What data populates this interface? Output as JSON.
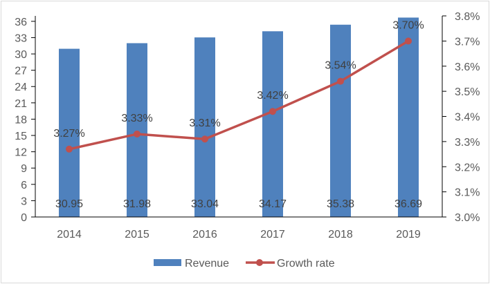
{
  "chart_data": {
    "type": "bar+line",
    "categories": [
      "2014",
      "2015",
      "2016",
      "2017",
      "2018",
      "2019"
    ],
    "series": [
      {
        "name": "Revenue",
        "type": "bar",
        "axis": "left",
        "values": [
          30.95,
          31.98,
          33.04,
          34.17,
          35.38,
          36.69
        ],
        "labels": [
          "30.95",
          "31.98",
          "33.04",
          "34.17",
          "35.38",
          "36.69"
        ],
        "color": "#4f81bd"
      },
      {
        "name": "Growth rate",
        "type": "line",
        "axis": "right",
        "values": [
          3.27,
          3.33,
          3.31,
          3.42,
          3.54,
          3.7
        ],
        "labels": [
          "3.27%",
          "3.33%",
          "3.31%",
          "3.42%",
          "3.54%",
          "3.70%"
        ],
        "color": "#c0504d"
      }
    ],
    "left_axis": {
      "min": 0,
      "max": 37,
      "ticks": [
        "0",
        "3",
        "6",
        "9",
        "12",
        "15",
        "18",
        "21",
        "24",
        "27",
        "30",
        "33",
        "36"
      ],
      "tick_values": [
        0,
        3,
        6,
        9,
        12,
        15,
        18,
        21,
        24,
        27,
        30,
        33,
        36
      ]
    },
    "right_axis": {
      "min": 3.0,
      "max": 3.8,
      "ticks": [
        "3.0%",
        "3.1%",
        "3.2%",
        "3.3%",
        "3.4%",
        "3.5%",
        "3.6%",
        "3.7%",
        "3.8%"
      ],
      "tick_values": [
        3.0,
        3.1,
        3.2,
        3.3,
        3.4,
        3.5,
        3.6,
        3.7,
        3.8
      ]
    },
    "legend": {
      "position": "bottom",
      "items": [
        "Revenue",
        "Growth rate"
      ]
    },
    "grid": false
  }
}
